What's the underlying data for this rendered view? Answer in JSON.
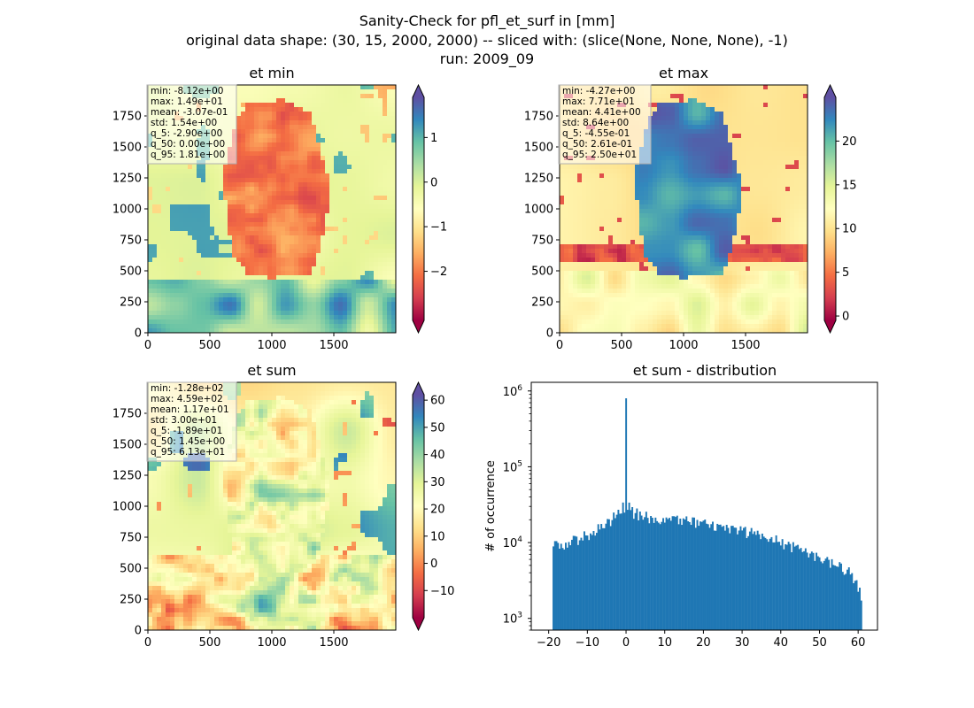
{
  "figure": {
    "title_lines": [
      "Sanity-Check for pfl_et_surf in [mm]",
      "original data shape: (30, 15, 2000, 2000) -- sliced with: (slice(None, None, None), -1)",
      "run: 2009_09"
    ]
  },
  "colors": {
    "bar": "#1f77b4",
    "colormap": "Spectral",
    "colormap_stops": [
      "#9e0142",
      "#d53e4f",
      "#f46d43",
      "#fdae61",
      "#fee08b",
      "#ffffbf",
      "#e6f598",
      "#abdda4",
      "#66c2a5",
      "#3288bd",
      "#5e4fa2"
    ]
  },
  "chart_data": [
    {
      "type": "heatmap",
      "title": "et min",
      "colormap": "Spectral",
      "xlim": [
        0,
        2000
      ],
      "ylim": [
        0,
        2000
      ],
      "x_ticks": [
        "0",
        "500",
        "1000",
        "1500"
      ],
      "y_ticks": [
        "0",
        "250",
        "500",
        "750",
        "1000",
        "1250",
        "1500",
        "1750"
      ],
      "colorbar": {
        "range": [
          -3.1,
          1.9
        ],
        "ticks": [
          1,
          0,
          -1,
          -2
        ],
        "tick_labels": [
          "1",
          "0",
          "−1",
          "−2"
        ],
        "extend": "both"
      },
      "stats": [
        "min: -8.12e+00",
        "max: 1.49e+01",
        "mean: -3.07e-01",
        "std: 1.54e+00",
        "q_5: -2.90e+00",
        "q_50: 0.00e+00",
        "q_95: 1.81e+00"
      ]
    },
    {
      "type": "heatmap",
      "title": "et max",
      "colormap": "Spectral",
      "xlim": [
        0,
        2000
      ],
      "ylim": [
        0,
        2000
      ],
      "x_ticks": [
        "0",
        "500",
        "1000",
        "1500"
      ],
      "y_ticks": [
        "0",
        "250",
        "500",
        "750",
        "1000",
        "1250",
        "1500",
        "1750"
      ],
      "colorbar": {
        "range": [
          -0.5,
          25
        ],
        "ticks": [
          20,
          15,
          10,
          5,
          0
        ],
        "tick_labels": [
          "20",
          "15",
          "10",
          "5",
          "0"
        ],
        "extend": "both"
      },
      "stats": [
        "min: -4.27e+00",
        "max: 7.71e+01",
        "mean: 4.41e+00",
        "std: 8.64e+00",
        "q_5: -4.55e-01",
        "q_50: 2.61e-01",
        "q_95: 2.50e+01"
      ]
    },
    {
      "type": "heatmap",
      "title": "et sum",
      "colormap": "Spectral",
      "xlim": [
        0,
        2000
      ],
      "ylim": [
        0,
        2000
      ],
      "x_ticks": [
        "0",
        "500",
        "1000",
        "1500"
      ],
      "y_ticks": [
        "0",
        "250",
        "500",
        "750",
        "1000",
        "1250",
        "1500",
        "1750"
      ],
      "colorbar": {
        "range": [
          -20,
          62
        ],
        "ticks": [
          60,
          50,
          40,
          30,
          20,
          10,
          0,
          -10
        ],
        "tick_labels": [
          "60",
          "50",
          "40",
          "30",
          "20",
          "10",
          "0",
          "−10"
        ],
        "extend": "both"
      },
      "stats": [
        "min: -1.28e+02",
        "max: 4.59e+02",
        "mean: 1.17e+01",
        "std: 3.00e+01",
        "q_5: -1.89e+01",
        "q_50: 1.45e+00",
        "q_95: 6.13e+01"
      ]
    },
    {
      "type": "bar",
      "title": "et sum - distribution",
      "xlabel": "",
      "ylabel": "# of occurrence",
      "yscale": "log",
      "xlim": [
        -24.5,
        65
      ],
      "ylim": [
        700,
        1300000
      ],
      "x_ticks": [
        -20,
        -10,
        0,
        10,
        20,
        30,
        40,
        50,
        60
      ],
      "x_tick_labels": [
        "−20",
        "−10",
        "0",
        "10",
        "20",
        "30",
        "40",
        "50",
        "60"
      ],
      "y_ticks": [
        1000,
        10000,
        100000,
        1000000
      ],
      "y_tick_labels": [
        [
          "10",
          "3"
        ],
        [
          "10",
          "4"
        ],
        [
          "10",
          "5"
        ],
        [
          "10",
          "6"
        ]
      ],
      "bin_range": [
        -19,
        61
      ],
      "profile": {
        "x": [
          -19,
          -15,
          -10,
          -5,
          -2,
          -0.2,
          0,
          0.2,
          2,
          5,
          10,
          15,
          20,
          25,
          30,
          35,
          40,
          45,
          50,
          55,
          58,
          60,
          61
        ],
        "y": [
          9000,
          10000,
          12500,
          17000,
          25000,
          31000,
          800000,
          31000,
          25000,
          22000,
          20000,
          19000,
          18000,
          16000,
          14000,
          12500,
          10000,
          8000,
          6500,
          5000,
          4000,
          2500,
          2000
        ]
      }
    }
  ]
}
